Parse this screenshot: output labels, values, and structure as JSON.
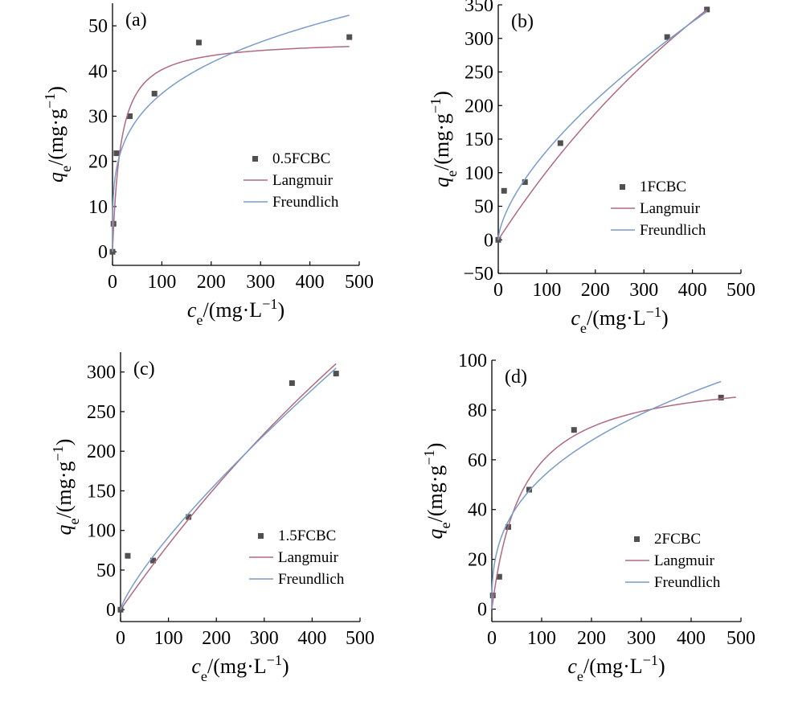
{
  "style": {
    "marker_color": "#505050",
    "langmuir_color": "#b06a80",
    "freundlich_color": "#7a9cc8",
    "axis_color": "#000000"
  },
  "chart_data": [
    {
      "type": "scatter",
      "panel_label": "(a)",
      "xlabel": "c_e/(mg·L^−1)",
      "ylabel": "q_e/(mg·g^−1)",
      "xlim": [
        0,
        500
      ],
      "ylim": [
        -3,
        55
      ],
      "xticks": [
        0,
        100,
        200,
        300,
        400,
        500
      ],
      "yticks": [
        0,
        10,
        20,
        30,
        40,
        50
      ],
      "grid": false,
      "legend_position": "center-right",
      "series": [
        {
          "name": "0.5FCBC",
          "kind": "scatter",
          "x": [
            0,
            2,
            8,
            35,
            85,
            175,
            480
          ],
          "y": [
            0,
            6.2,
            21.8,
            30.0,
            35.0,
            46.3,
            47.5
          ]
        },
        {
          "name": "Langmuir",
          "kind": "line",
          "model": "langmuir",
          "params": {
            "qm": 47,
            "KL": 0.06
          },
          "xrange": [
            0,
            480
          ]
        },
        {
          "name": "Freundlich",
          "kind": "line",
          "model": "freundlich",
          "params": {
            "KF": 10.75,
            "n": 3.9
          },
          "xrange": [
            0,
            480
          ]
        }
      ]
    },
    {
      "type": "scatter",
      "panel_label": "(b)",
      "xlabel": "c_e/(mg·L^−1)",
      "ylabel": "q_e/(mg·g^−1)",
      "xlim": [
        0,
        500
      ],
      "ylim": [
        -50,
        350
      ],
      "xticks": [
        0,
        100,
        200,
        300,
        400,
        500
      ],
      "yticks": [
        -50,
        0,
        50,
        100,
        150,
        200,
        250,
        300,
        350
      ],
      "grid": false,
      "legend_position": "center-right",
      "series": [
        {
          "name": "1FCBC",
          "kind": "scatter",
          "x": [
            0,
            12,
            55,
            128,
            348,
            430
          ],
          "y": [
            0,
            73,
            86,
            144,
            302,
            343
          ]
        },
        {
          "name": "Langmuir",
          "kind": "line",
          "model": "langmuir",
          "params": {
            "qm": 1200,
            "KL": 0.00093
          },
          "xrange": [
            0,
            430
          ]
        },
        {
          "name": "Freundlich",
          "kind": "line",
          "model": "freundlich",
          "params": {
            "KF": 6.8,
            "n": 1.55
          },
          "xrange": [
            0,
            430
          ]
        }
      ]
    },
    {
      "type": "scatter",
      "panel_label": "(c)",
      "xlabel": "c_e/(mg·L^−1)",
      "ylabel": "q_e/(mg·g^−1)",
      "xlim": [
        0,
        500
      ],
      "ylim": [
        -15,
        325
      ],
      "xticks": [
        0,
        100,
        200,
        300,
        400,
        500
      ],
      "yticks": [
        0,
        50,
        100,
        150,
        200,
        250,
        300
      ],
      "grid": false,
      "legend_position": "center-right",
      "series": [
        {
          "name": "1.5FCBC",
          "kind": "scatter",
          "x": [
            0,
            15,
            68,
            142,
            358,
            450
          ],
          "y": [
            0,
            68,
            62,
            117,
            286,
            298
          ]
        },
        {
          "name": "Langmuir",
          "kind": "line",
          "model": "langmuir",
          "params": {
            "qm": 1500,
            "KL": 0.00058
          },
          "xrange": [
            0,
            450
          ]
        },
        {
          "name": "Freundlich",
          "kind": "line",
          "model": "freundlich",
          "params": {
            "KF": 2.3,
            "n": 1.25
          },
          "xrange": [
            0,
            450
          ]
        }
      ]
    },
    {
      "type": "scatter",
      "panel_label": "(d)",
      "xlabel": "c_e/(mg·L^−1)",
      "ylabel": "q_e/(mg·g^−1)",
      "xlim": [
        0,
        500
      ],
      "ylim": [
        -5,
        100
      ],
      "xticks": [
        0,
        100,
        200,
        300,
        400,
        500
      ],
      "yticks": [
        0,
        20,
        40,
        60,
        80,
        100
      ],
      "grid": false,
      "legend_position": "bottom-right",
      "series": [
        {
          "name": "2FCBC",
          "kind": "scatter",
          "x": [
            2,
            15,
            33,
            75,
            165,
            460
          ],
          "y": [
            5.5,
            13,
            33,
            48,
            72,
            85
          ]
        },
        {
          "name": "Langmuir",
          "kind": "line",
          "model": "langmuir",
          "params": {
            "qm": 96,
            "KL": 0.016
          },
          "xrange": [
            0,
            490
          ]
        },
        {
          "name": "Freundlich",
          "kind": "line",
          "model": "freundlich",
          "params": {
            "KF": 10.0,
            "n": 2.77
          },
          "xrange": [
            0,
            460
          ]
        }
      ]
    }
  ]
}
